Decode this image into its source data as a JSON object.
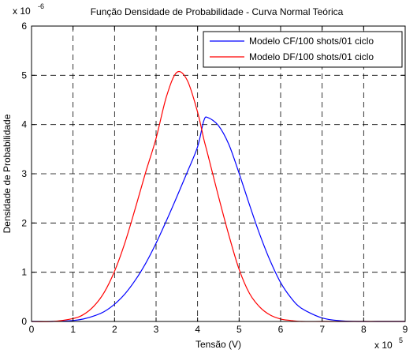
{
  "chart_data": {
    "type": "line",
    "title": "Função Densidade de Probabilidade - Curva Normal Teórica",
    "xlabel": "Tensão (V)",
    "ylabel": "Densidade de Probabilidade",
    "xlim": [
      0,
      9
    ],
    "ylim": [
      0,
      6
    ],
    "x_ticks": [
      "0",
      "1",
      "2",
      "3",
      "4",
      "5",
      "6",
      "7",
      "8",
      "9"
    ],
    "y_ticks": [
      "0",
      "1",
      "2",
      "3",
      "4",
      "5",
      "6"
    ],
    "x_exponent": {
      "base": "x 10",
      "power": "5"
    },
    "y_exponent": {
      "base": "x 10",
      "power": "-6"
    },
    "grid": true,
    "legend_position": "top-right",
    "x": [
      0,
      0.5,
      1,
      1.25,
      1.5,
      1.75,
      2,
      2.25,
      2.5,
      2.75,
      3,
      3.25,
      3.5,
      3.75,
      4,
      4.15,
      4.25,
      4.5,
      4.75,
      5,
      5.25,
      5.5,
      5.75,
      6,
      6.25,
      6.5,
      7,
      7.5,
      8,
      8.5,
      9
    ],
    "series": [
      {
        "name": "Modelo CF/100 shots/01 ciclo",
        "color": "#0000ff",
        "values": [
          0.0,
          0.0,
          0.02,
          0.05,
          0.11,
          0.2,
          0.35,
          0.56,
          0.84,
          1.18,
          1.59,
          2.05,
          2.53,
          3.03,
          3.55,
          4.08,
          4.14,
          3.98,
          3.6,
          3.01,
          2.37,
          1.76,
          1.23,
          0.79,
          0.48,
          0.27,
          0.07,
          0.01,
          0.0,
          0.0,
          0.0
        ]
      },
      {
        "name": "Modelo DF/100 shots/01 ciclo",
        "color": "#ff0000",
        "values": [
          0.0,
          0.0,
          0.06,
          0.14,
          0.31,
          0.59,
          1.02,
          1.6,
          2.3,
          3.03,
          3.72,
          4.57,
          5.06,
          4.9,
          4.25,
          3.7,
          3.38,
          2.55,
          1.76,
          1.06,
          0.57,
          0.29,
          0.13,
          0.05,
          0.02,
          0.0,
          0.0,
          0.0,
          0.0,
          0.0,
          0.0
        ]
      }
    ]
  }
}
